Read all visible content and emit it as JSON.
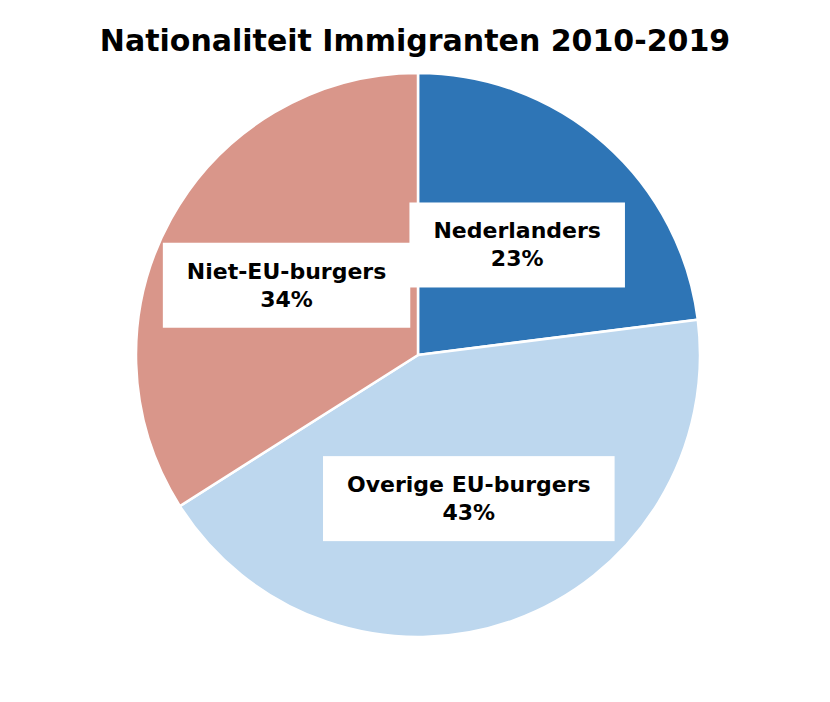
{
  "chart_data": {
    "type": "pie",
    "title": "Nationaliteit Immigranten 2010-2019",
    "categories": [
      "Nederlanders",
      "Overige EU-burgers",
      "Niet-EU-burgers"
    ],
    "values": [
      23,
      43,
      34
    ],
    "value_labels": [
      "23%",
      "43%",
      "34%"
    ],
    "colors": [
      "#2e75b6",
      "#bdd7ee",
      "#d9968a"
    ],
    "data_labels": true
  }
}
